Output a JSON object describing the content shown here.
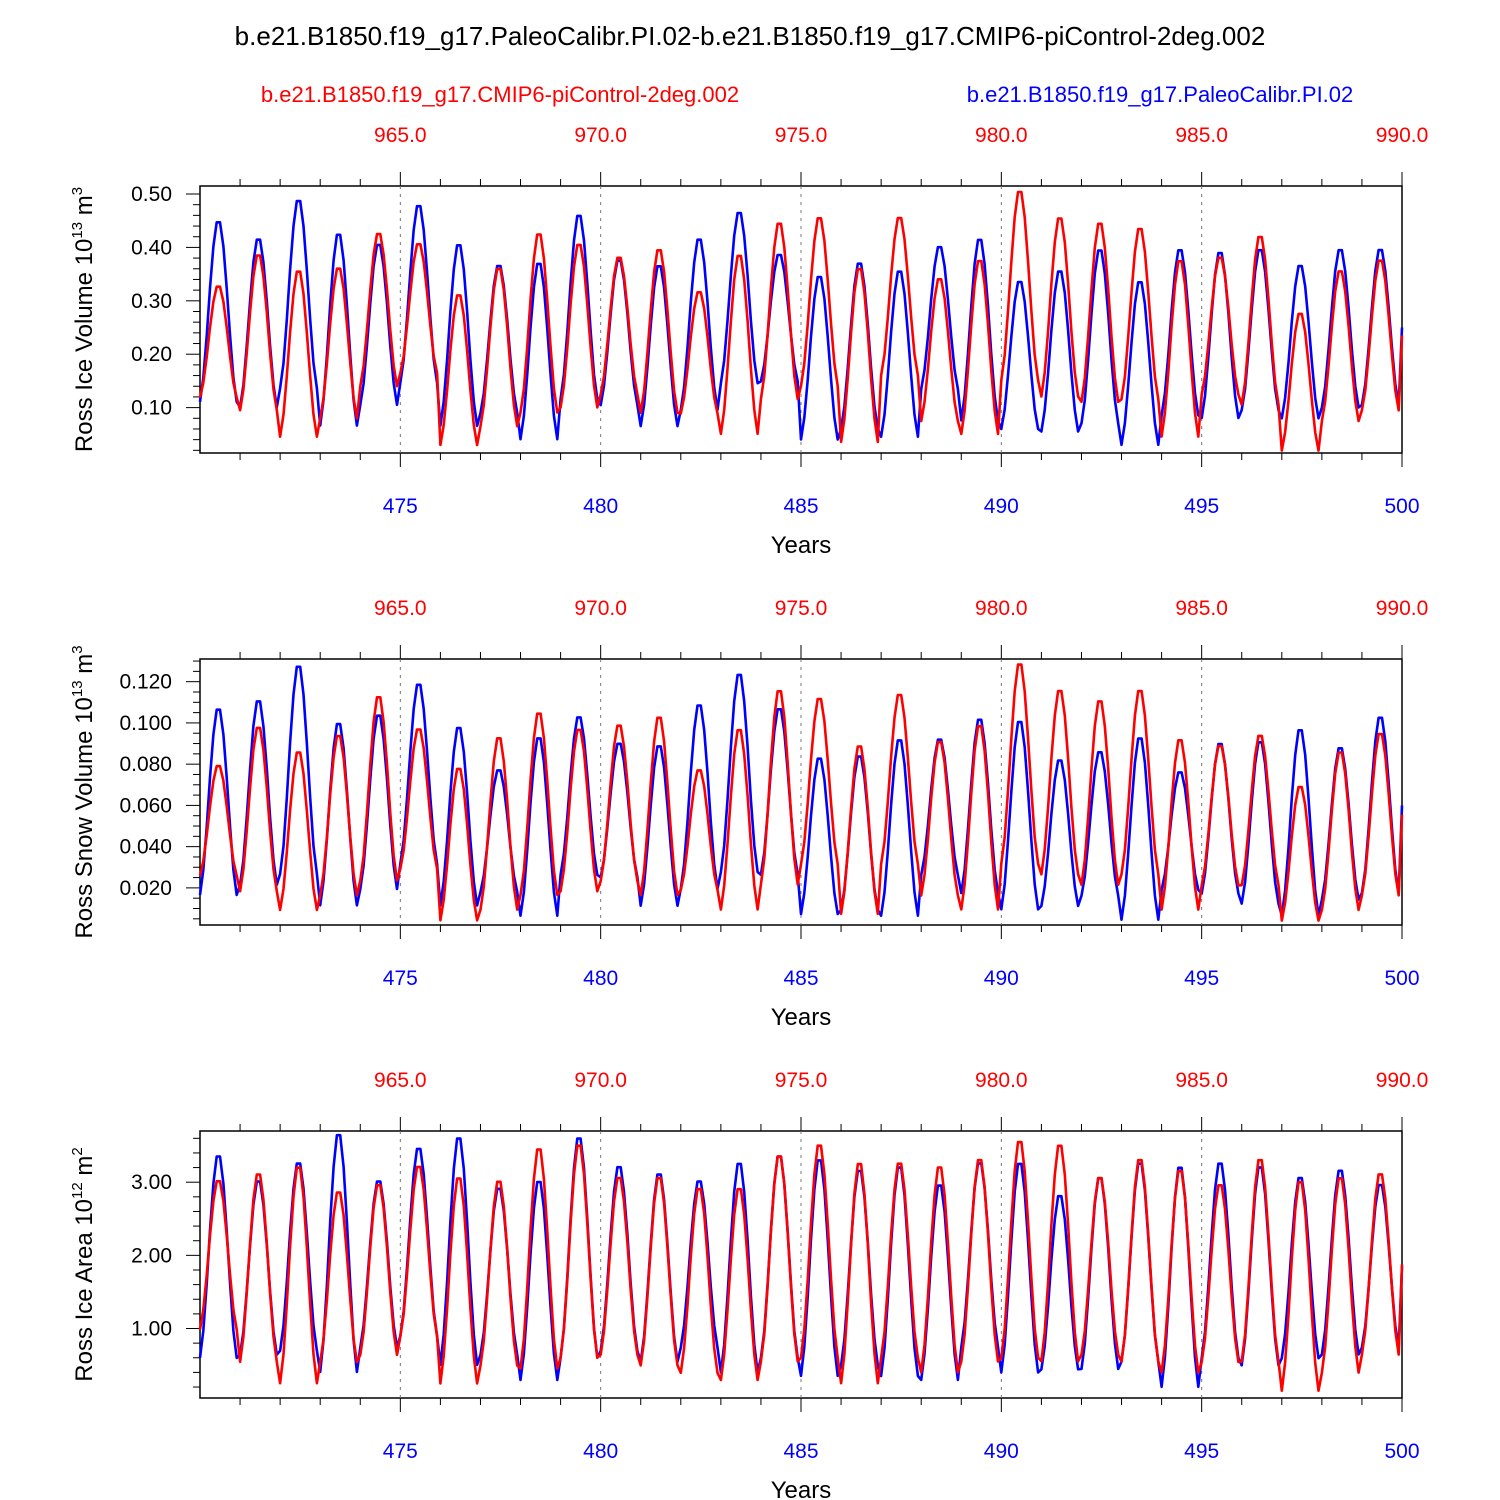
{
  "title": "b.e21.B1850.f19_g17.PaleoCalibr.PI.02-b.e21.B1850.f19_g17.CMIP6-piControl-2deg.002",
  "legend": {
    "red_label": "b.e21.B1850.f19_g17.CMIP6-piControl-2deg.002",
    "blue_label": "b.e21.B1850.f19_g17.PaleoCalibr.PI.02"
  },
  "colors": {
    "red": "#ff0000",
    "blue": "#0000ff"
  },
  "chart_data": [
    {
      "type": "line",
      "ylabel": "Ross Ice Volume",
      "yunit_base": "10",
      "yunit_exp": "13",
      "yunit_tail": "m",
      "yunit_tail_exp": "3",
      "xlabel": "Years",
      "xlim": [
        470,
        500
      ],
      "ylim": [
        0.015,
        0.515
      ],
      "yticks": [
        0.1,
        0.2,
        0.3,
        0.4,
        0.5
      ],
      "ytick_labels": [
        "0.10",
        "0.20",
        "0.30",
        "0.40",
        "0.50"
      ],
      "yminor_step": 0.02,
      "bottom_ticks": [
        475,
        480,
        485,
        490,
        495,
        500
      ],
      "bottom_tick_labels": [
        "475",
        "480",
        "485",
        "490",
        "495",
        "500"
      ],
      "top_ticks": [
        475,
        480,
        485,
        490,
        495,
        500
      ],
      "top_tick_labels": [
        "965.0",
        "970.0",
        "975.0",
        "980.0",
        "985.0",
        "990.0"
      ],
      "series": [
        {
          "name": "b.e21.B1850.f19_g17.PaleoCalibr.PI.02",
          "color": "blue",
          "peaks": [
            0.453,
            0.42,
            0.493,
            0.43,
            0.41,
            0.483,
            0.41,
            0.37,
            0.375,
            0.465,
            0.38,
            0.37,
            0.42,
            0.47,
            0.39,
            0.35,
            0.375,
            0.36,
            0.405,
            0.42,
            0.34,
            0.36,
            0.4,
            0.34,
            0.4,
            0.395,
            0.4,
            0.37,
            0.4,
            0.4
          ],
          "troughs": [
            0.105,
            0.095,
            0.13,
            0.06,
            0.1,
            0.14,
            0.06,
            0.085,
            0.035,
            0.11,
            0.1,
            0.06,
            0.09,
            0.14,
            0.145,
            0.035,
            0.055,
            0.04,
            0.13,
            0.07,
            0.055,
            0.05,
            0.065,
            0.025,
            0.08,
            0.075,
            0.09,
            0.075,
            0.095,
            0.1
          ]
        },
        {
          "name": "b.e21.B1850.f19_g17.CMIP6-piControl-2deg.002",
          "color": "red",
          "peaks": [
            0.33,
            0.39,
            0.36,
            0.365,
            0.43,
            0.41,
            0.315,
            0.365,
            0.43,
            0.41,
            0.385,
            0.4,
            0.32,
            0.39,
            0.45,
            0.46,
            0.365,
            0.46,
            0.345,
            0.38,
            0.51,
            0.46,
            0.45,
            0.44,
            0.38,
            0.385,
            0.425,
            0.28,
            0.36,
            0.38
          ],
          "troughs": [
            0.115,
            0.09,
            0.04,
            0.075,
            0.135,
            0.16,
            0.025,
            0.06,
            0.085,
            0.095,
            0.12,
            0.085,
            0.085,
            0.045,
            0.11,
            0.135,
            0.03,
            0.155,
            0.07,
            0.045,
            0.145,
            0.115,
            0.105,
            0.11,
            0.04,
            0.12,
            0.1,
            0.015,
            0.07,
            0.09
          ]
        }
      ]
    },
    {
      "type": "line",
      "ylabel": "Ross Snow Volume",
      "yunit_base": "10",
      "yunit_exp": "13",
      "yunit_tail": "m",
      "yunit_tail_exp": "3",
      "xlabel": "Years",
      "xlim": [
        470,
        500
      ],
      "ylim": [
        0.002,
        0.131
      ],
      "yticks": [
        0.02,
        0.04,
        0.06,
        0.08,
        0.1,
        0.12
      ],
      "ytick_labels": [
        "0.020",
        "0.040",
        "0.060",
        "0.080",
        "0.100",
        "0.120"
      ],
      "yminor_step": 0.005,
      "bottom_ticks": [
        475,
        480,
        485,
        490,
        495,
        500
      ],
      "bottom_tick_labels": [
        "475",
        "480",
        "485",
        "490",
        "495",
        "500"
      ],
      "top_ticks": [
        475,
        480,
        485,
        490,
        495,
        500
      ],
      "top_tick_labels": [
        "965.0",
        "970.0",
        "975.0",
        "980.0",
        "985.0",
        "990.0"
      ],
      "series": [
        {
          "name": "b.e21.B1850.f19_g17.PaleoCalibr.PI.02",
          "color": "blue",
          "peaks": [
            0.108,
            0.112,
            0.129,
            0.101,
            0.105,
            0.12,
            0.099,
            0.078,
            0.094,
            0.104,
            0.091,
            0.09,
            0.11,
            0.125,
            0.108,
            0.084,
            0.085,
            0.093,
            0.093,
            0.103,
            0.102,
            0.083,
            0.087,
            0.094,
            0.077,
            0.091,
            0.092,
            0.098,
            0.089,
            0.104
          ],
          "troughs": [
            0.015,
            0.02,
            0.025,
            0.01,
            0.018,
            0.03,
            0.01,
            0.017,
            0.005,
            0.025,
            0.024,
            0.01,
            0.018,
            0.026,
            0.025,
            0.006,
            0.008,
            0.005,
            0.025,
            0.016,
            0.008,
            0.01,
            0.015,
            0.003,
            0.018,
            0.016,
            0.011,
            0.005,
            0.013,
            0.016
          ]
        },
        {
          "name": "b.e21.B1850.f19_g17.CMIP6-piControl-2deg.002",
          "color": "red",
          "peaks": [
            0.08,
            0.099,
            0.087,
            0.095,
            0.114,
            0.098,
            0.079,
            0.094,
            0.106,
            0.098,
            0.1,
            0.104,
            0.078,
            0.098,
            0.117,
            0.113,
            0.09,
            0.115,
            0.092,
            0.1,
            0.13,
            0.117,
            0.112,
            0.117,
            0.093,
            0.09,
            0.095,
            0.07,
            0.087,
            0.096
          ],
          "troughs": [
            0.025,
            0.017,
            0.008,
            0.015,
            0.022,
            0.028,
            0.003,
            0.008,
            0.015,
            0.017,
            0.022,
            0.015,
            0.018,
            0.008,
            0.02,
            0.03,
            0.006,
            0.03,
            0.015,
            0.008,
            0.03,
            0.025,
            0.02,
            0.025,
            0.008,
            0.02,
            0.02,
            0.003,
            0.008,
            0.015
          ]
        }
      ]
    },
    {
      "type": "line",
      "ylabel": "Ross Ice Area",
      "yunit_base": "10",
      "yunit_exp": "12",
      "yunit_tail": "m",
      "yunit_tail_exp": "2",
      "xlabel": "Years",
      "xlim": [
        470,
        500
      ],
      "ylim": [
        0.05,
        3.7
      ],
      "yticks": [
        1.0,
        2.0,
        3.0
      ],
      "ytick_labels": [
        "1.00",
        "2.00",
        "3.00"
      ],
      "yminor_step": 0.2,
      "bottom_ticks": [
        475,
        480,
        485,
        490,
        495,
        500
      ],
      "bottom_tick_labels": [
        "475",
        "480",
        "485",
        "490",
        "495",
        "500"
      ],
      "top_ticks": [
        475,
        480,
        485,
        490,
        495,
        500
      ],
      "top_tick_labels": [
        "965.0",
        "970.0",
        "975.0",
        "980.0",
        "985.0",
        "990.0"
      ],
      "series": [
        {
          "name": "b.e21.B1850.f19_g17.PaleoCalibr.PI.02",
          "color": "blue",
          "peaks": [
            3.4,
            3.05,
            3.3,
            3.7,
            3.05,
            3.5,
            3.65,
            2.95,
            3.05,
            3.65,
            3.25,
            3.15,
            3.05,
            3.3,
            3.4,
            3.35,
            3.2,
            3.25,
            3.0,
            3.3,
            3.3,
            2.85,
            3.1,
            3.3,
            3.25,
            3.3,
            3.25,
            3.1,
            3.2,
            3.0
          ],
          "troughs": [
            0.55,
            0.6,
            0.65,
            0.35,
            0.7,
            0.85,
            0.45,
            0.6,
            0.25,
            0.55,
            0.65,
            0.5,
            0.7,
            0.35,
            0.55,
            0.3,
            0.45,
            0.3,
            0.25,
            0.7,
            0.35,
            0.4,
            0.4,
            0.5,
            0.15,
            0.55,
            0.45,
            0.55,
            0.6,
            0.7
          ]
        },
        {
          "name": "b.e21.B1850.f19_g17.CMIP6-piControl-2deg.002",
          "color": "red",
          "peaks": [
            3.05,
            3.15,
            3.25,
            2.9,
            3.0,
            3.25,
            3.1,
            3.05,
            3.5,
            3.55,
            3.1,
            3.1,
            2.95,
            2.95,
            3.4,
            3.55,
            3.3,
            3.3,
            3.25,
            3.35,
            3.6,
            3.55,
            3.1,
            3.35,
            3.2,
            3.0,
            3.35,
            3.05,
            3.1,
            3.15
          ],
          "troughs": [
            0.95,
            0.5,
            0.2,
            0.5,
            0.6,
            0.85,
            0.2,
            0.45,
            0.4,
            0.55,
            0.6,
            0.45,
            0.35,
            0.25,
            0.5,
            0.55,
            0.2,
            0.55,
            0.35,
            0.5,
            0.55,
            0.5,
            0.6,
            0.5,
            0.35,
            0.5,
            0.5,
            0.1,
            0.35,
            0.6
          ]
        }
      ]
    }
  ]
}
